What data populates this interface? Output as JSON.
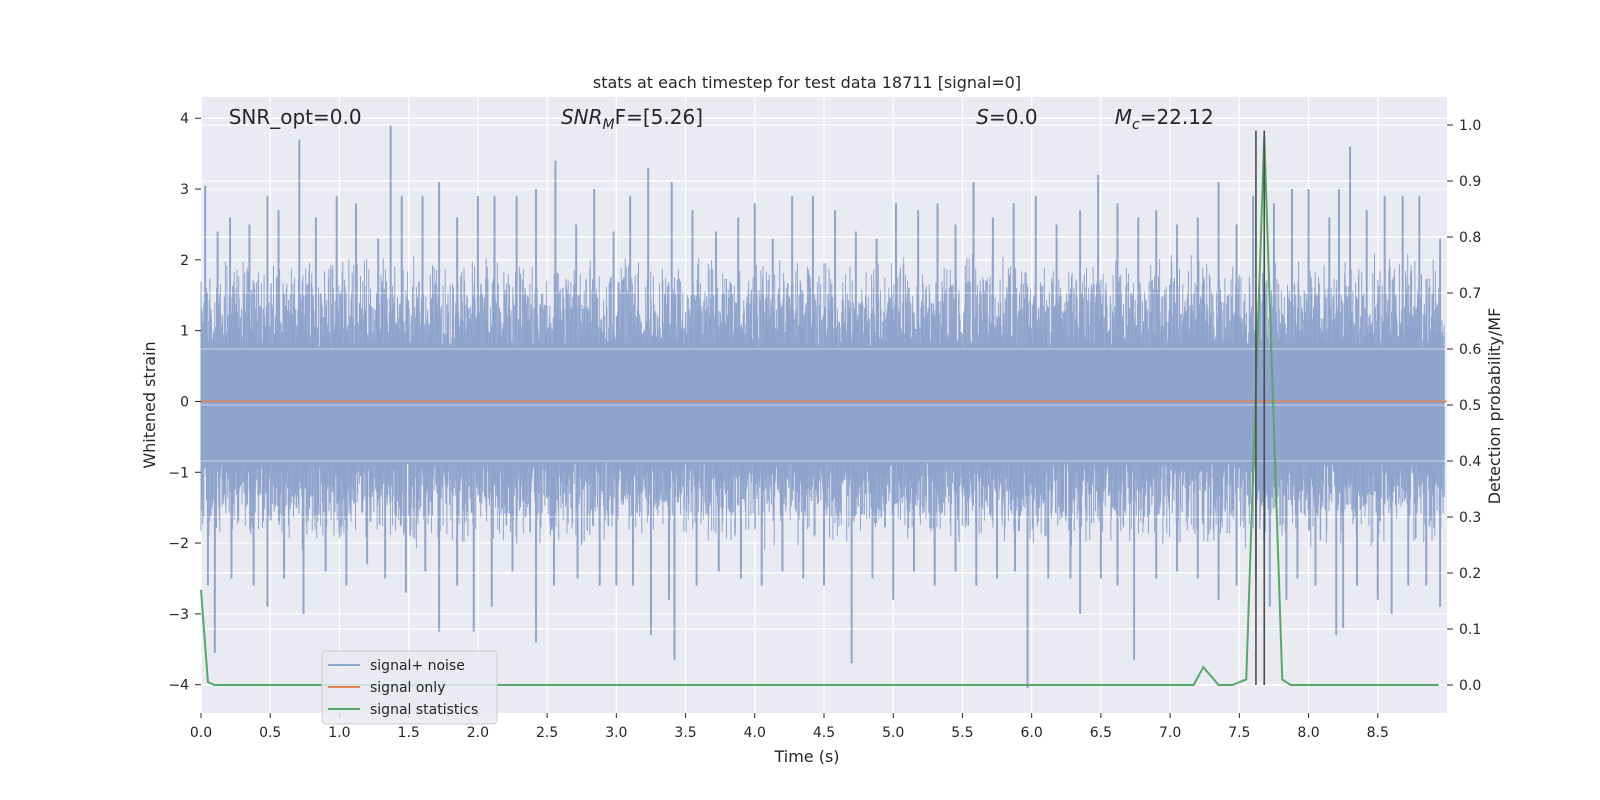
{
  "chart_data": {
    "type": "line",
    "title": "stats at each timestep for test data 18711 [signal=0]",
    "xlabel": "Time (s)",
    "ylabel_left": "Whitened strain",
    "ylabel_right": "Detection probability/MF",
    "xlim": [
      0.0,
      9.0
    ],
    "ylim_left": [
      -4.4,
      4.3
    ],
    "ylim_right": [
      -0.05,
      1.05
    ],
    "x_ticks": [
      0.0,
      0.5,
      1.0,
      1.5,
      2.0,
      2.5,
      3.0,
      3.5,
      4.0,
      4.5,
      5.0,
      5.5,
      6.0,
      6.5,
      7.0,
      7.5,
      8.0,
      8.5
    ],
    "x_tick_labels": [
      "0.0",
      "0.5",
      "1.0",
      "1.5",
      "2.0",
      "2.5",
      "3.0",
      "3.5",
      "4.0",
      "4.5",
      "5.0",
      "5.5",
      "6.0",
      "6.5",
      "7.0",
      "7.5",
      "8.0",
      "8.5"
    ],
    "y_left_ticks": [
      4,
      3,
      2,
      1,
      0,
      -1,
      -2,
      -3,
      -4
    ],
    "y_left_tick_labels": [
      "4",
      "3",
      "2",
      "1",
      "0",
      "−1",
      "−2",
      "−3",
      "−4"
    ],
    "y_right_ticks": [
      1.0,
      0.9,
      0.8,
      0.7,
      0.6,
      0.5,
      0.4,
      0.3,
      0.2,
      0.1,
      0.0
    ],
    "y_right_tick_labels": [
      "1.0",
      "0.9",
      "0.8",
      "0.7",
      "0.6",
      "0.5",
      "0.4",
      "0.3",
      "0.2",
      "0.1",
      "0.0"
    ],
    "grid": true,
    "legend_position": "lower-left",
    "annotations": [
      {
        "main": "SNR_opt=0.0",
        "sub": "",
        "rest": "",
        "italic": false,
        "x": 0.2
      },
      {
        "main": "SNR",
        "sub": "M",
        "rest": "F=[5.26]",
        "italic": true,
        "x": 2.6
      },
      {
        "main": "S",
        "sub": "",
        "rest": "=0.0",
        "italic": true,
        "x": 5.6
      },
      {
        "main": "M",
        "sub": "c",
        "rest": "=22.12",
        "italic": true,
        "x": 6.6
      }
    ],
    "series": [
      {
        "name": "signal+ noise",
        "axis": "left",
        "color": "#8fa4cc",
        "noise_band": {
          "core_lower": -0.85,
          "core_upper": 0.75,
          "typical_peak": 1.6,
          "sample_spacing": 0.004
        },
        "peaks": [
          {
            "x": 0.03,
            "y": 3.05
          },
          {
            "x": 0.12,
            "y": 2.4
          },
          {
            "x": 0.21,
            "y": 2.6
          },
          {
            "x": 0.35,
            "y": 2.5
          },
          {
            "x": 0.48,
            "y": 2.9
          },
          {
            "x": 0.56,
            "y": 2.7
          },
          {
            "x": 0.71,
            "y": 3.7
          },
          {
            "x": 0.83,
            "y": 2.6
          },
          {
            "x": 0.98,
            "y": 2.9
          },
          {
            "x": 1.12,
            "y": 2.8
          },
          {
            "x": 1.28,
            "y": 2.3
          },
          {
            "x": 1.37,
            "y": 3.9
          },
          {
            "x": 1.45,
            "y": 2.9
          },
          {
            "x": 1.6,
            "y": 2.9
          },
          {
            "x": 1.72,
            "y": 3.1
          },
          {
            "x": 1.85,
            "y": 2.6
          },
          {
            "x": 2.0,
            "y": 2.9
          },
          {
            "x": 2.12,
            "y": 2.9
          },
          {
            "x": 2.28,
            "y": 2.9
          },
          {
            "x": 2.42,
            "y": 3.0
          },
          {
            "x": 2.56,
            "y": 3.4
          },
          {
            "x": 2.71,
            "y": 2.5
          },
          {
            "x": 2.84,
            "y": 3.0
          },
          {
            "x": 2.98,
            "y": 2.4
          },
          {
            "x": 3.1,
            "y": 2.9
          },
          {
            "x": 3.23,
            "y": 3.3
          },
          {
            "x": 3.4,
            "y": 3.1
          },
          {
            "x": 3.55,
            "y": 2.7
          },
          {
            "x": 3.72,
            "y": 2.4
          },
          {
            "x": 3.88,
            "y": 2.6
          },
          {
            "x": 4.0,
            "y": 2.8
          },
          {
            "x": 4.13,
            "y": 2.3
          },
          {
            "x": 4.27,
            "y": 2.9
          },
          {
            "x": 4.42,
            "y": 2.9
          },
          {
            "x": 4.58,
            "y": 2.7
          },
          {
            "x": 4.73,
            "y": 2.4
          },
          {
            "x": 4.88,
            "y": 2.3
          },
          {
            "x": 5.02,
            "y": 2.8
          },
          {
            "x": 5.18,
            "y": 2.7
          },
          {
            "x": 5.32,
            "y": 2.8
          },
          {
            "x": 5.45,
            "y": 2.5
          },
          {
            "x": 5.58,
            "y": 3.1
          },
          {
            "x": 5.72,
            "y": 2.6
          },
          {
            "x": 5.87,
            "y": 2.8
          },
          {
            "x": 6.03,
            "y": 2.9
          },
          {
            "x": 6.18,
            "y": 2.5
          },
          {
            "x": 6.35,
            "y": 2.7
          },
          {
            "x": 6.48,
            "y": 3.2
          },
          {
            "x": 6.62,
            "y": 2.8
          },
          {
            "x": 6.77,
            "y": 2.6
          },
          {
            "x": 6.9,
            "y": 2.7
          },
          {
            "x": 7.05,
            "y": 2.5
          },
          {
            "x": 7.2,
            "y": 2.6
          },
          {
            "x": 7.35,
            "y": 3.1
          },
          {
            "x": 7.48,
            "y": 2.5
          },
          {
            "x": 7.6,
            "y": 2.9
          },
          {
            "x": 7.75,
            "y": 2.8
          },
          {
            "x": 7.88,
            "y": 3.0
          },
          {
            "x": 8.0,
            "y": 3.0
          },
          {
            "x": 8.15,
            "y": 2.6
          },
          {
            "x": 8.22,
            "y": 3.0
          },
          {
            "x": 8.3,
            "y": 3.6
          },
          {
            "x": 8.42,
            "y": 2.7
          },
          {
            "x": 8.55,
            "y": 2.9
          },
          {
            "x": 8.68,
            "y": 2.9
          },
          {
            "x": 8.8,
            "y": 2.9
          },
          {
            "x": 8.95,
            "y": 2.3
          }
        ],
        "troughs": [
          {
            "x": 0.05,
            "y": -2.6
          },
          {
            "x": 0.1,
            "y": -3.55
          },
          {
            "x": 0.22,
            "y": -2.5
          },
          {
            "x": 0.38,
            "y": -2.6
          },
          {
            "x": 0.48,
            "y": -2.9
          },
          {
            "x": 0.6,
            "y": -2.5
          },
          {
            "x": 0.74,
            "y": -3.0
          },
          {
            "x": 0.9,
            "y": -2.4
          },
          {
            "x": 1.05,
            "y": -2.6
          },
          {
            "x": 1.2,
            "y": -2.3
          },
          {
            "x": 1.33,
            "y": -2.5
          },
          {
            "x": 1.48,
            "y": -2.7
          },
          {
            "x": 1.62,
            "y": -2.4
          },
          {
            "x": 1.72,
            "y": -3.25
          },
          {
            "x": 1.85,
            "y": -2.6
          },
          {
            "x": 1.97,
            "y": -3.25
          },
          {
            "x": 2.1,
            "y": -2.9
          },
          {
            "x": 2.25,
            "y": -2.4
          },
          {
            "x": 2.42,
            "y": -3.4
          },
          {
            "x": 2.55,
            "y": -2.6
          },
          {
            "x": 2.72,
            "y": -2.5
          },
          {
            "x": 2.88,
            "y": -2.6
          },
          {
            "x": 3.0,
            "y": -2.6
          },
          {
            "x": 3.12,
            "y": -2.6
          },
          {
            "x": 3.25,
            "y": -3.3
          },
          {
            "x": 3.38,
            "y": -2.8
          },
          {
            "x": 3.42,
            "y": -3.65
          },
          {
            "x": 3.58,
            "y": -2.6
          },
          {
            "x": 3.74,
            "y": -2.4
          },
          {
            "x": 3.9,
            "y": -2.5
          },
          {
            "x": 4.05,
            "y": -2.6
          },
          {
            "x": 4.2,
            "y": -2.4
          },
          {
            "x": 4.35,
            "y": -2.5
          },
          {
            "x": 4.5,
            "y": -2.6
          },
          {
            "x": 4.7,
            "y": -3.7
          },
          {
            "x": 4.85,
            "y": -2.5
          },
          {
            "x": 5.0,
            "y": -2.8
          },
          {
            "x": 5.15,
            "y": -2.4
          },
          {
            "x": 5.3,
            "y": -2.6
          },
          {
            "x": 5.45,
            "y": -2.4
          },
          {
            "x": 5.6,
            "y": -2.6
          },
          {
            "x": 5.75,
            "y": -2.5
          },
          {
            "x": 5.88,
            "y": -2.4
          },
          {
            "x": 5.97,
            "y": -4.05
          },
          {
            "x": 6.12,
            "y": -2.5
          },
          {
            "x": 6.28,
            "y": -2.5
          },
          {
            "x": 6.35,
            "y": -3.0
          },
          {
            "x": 6.5,
            "y": -2.5
          },
          {
            "x": 6.62,
            "y": -2.6
          },
          {
            "x": 6.74,
            "y": -3.65
          },
          {
            "x": 6.9,
            "y": -2.5
          },
          {
            "x": 7.05,
            "y": -2.4
          },
          {
            "x": 7.2,
            "y": -2.5
          },
          {
            "x": 7.35,
            "y": -2.8
          },
          {
            "x": 7.48,
            "y": -2.6
          },
          {
            "x": 7.62,
            "y": -2.5
          },
          {
            "x": 7.72,
            "y": -2.9
          },
          {
            "x": 7.84,
            "y": -2.8
          },
          {
            "x": 7.92,
            "y": -2.5
          },
          {
            "x": 8.05,
            "y": -2.6
          },
          {
            "x": 8.2,
            "y": -3.3
          },
          {
            "x": 8.25,
            "y": -3.2
          },
          {
            "x": 8.35,
            "y": -2.6
          },
          {
            "x": 8.5,
            "y": -2.8
          },
          {
            "x": 8.6,
            "y": -3.0
          },
          {
            "x": 8.72,
            "y": -2.6
          },
          {
            "x": 8.85,
            "y": -2.6
          },
          {
            "x": 8.95,
            "y": -2.9
          }
        ]
      },
      {
        "name": "signal only",
        "axis": "left",
        "color": "#dd8452",
        "x": [
          0.0,
          9.0
        ],
        "y": [
          0.0,
          0.0
        ]
      },
      {
        "name": "signal statistics",
        "axis": "right",
        "color": "#55a868",
        "x": [
          0.0,
          0.05,
          0.1,
          7.17,
          7.24,
          7.35,
          7.45,
          7.55,
          7.68,
          7.81,
          7.87,
          8.94
        ],
        "y": [
          0.17,
          0.005,
          0.0,
          0.0,
          0.032,
          0.0,
          0.0,
          0.01,
          0.98,
          0.01,
          0.0,
          0.0
        ]
      }
    ],
    "vertical_lines": [
      {
        "x": 7.62,
        "y_top": 0.99,
        "y_bottom": 0.0,
        "color": "#4d4d4d"
      },
      {
        "x": 7.68,
        "y_top": 0.99,
        "y_bottom": 0.0,
        "color": "#4d4d4d"
      }
    ],
    "colors": {
      "background": "#eaeaf2",
      "grid": "#ffffff",
      "text": "#262626"
    }
  }
}
